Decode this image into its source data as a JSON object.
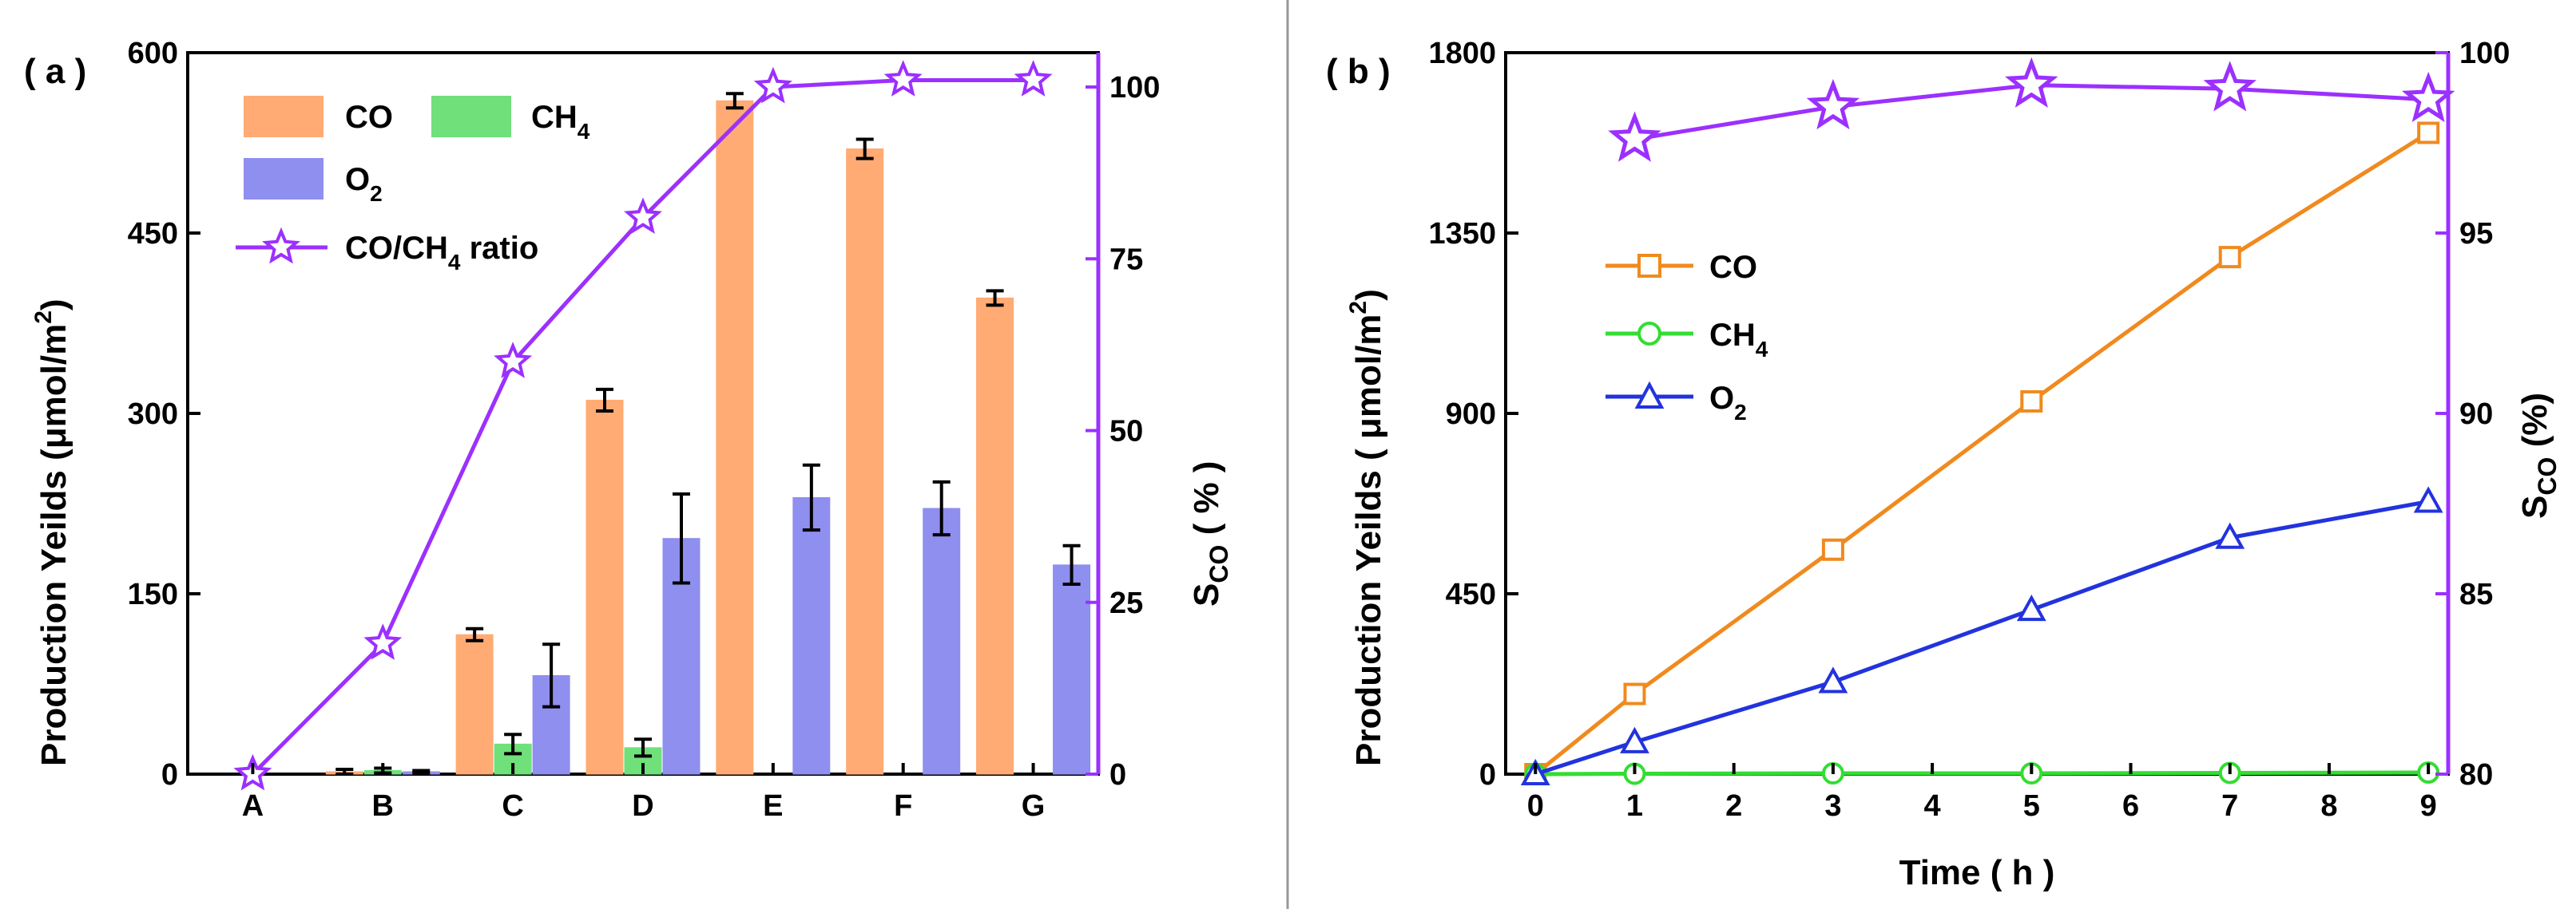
{
  "colors": {
    "co_bar": "#ffab73",
    "ch4_bar": "#6fe07a",
    "o2_bar": "#8f8ff0",
    "ratio": "#9b30ff",
    "co_line": "#f08a1e",
    "ch4_line": "#33dd33",
    "o2_line": "#2233dd",
    "axis": "#000000",
    "divider": "#999999"
  },
  "chart_data": [
    {
      "panel": "( a )",
      "type": "bar",
      "categories": [
        "A",
        "B",
        "C",
        "D",
        "E",
        "F",
        "G"
      ],
      "ylabel": "Production Yeilds (μmol/m",
      "ylabel_sup": "2",
      "ylabel_close": ")",
      "ylim": [
        0,
        600
      ],
      "yticks": [
        0,
        150,
        300,
        450,
        600
      ],
      "y2label_main": "S",
      "y2label_sub": "CO",
      "y2label_rest": "  ( % )",
      "y2lim": [
        0,
        105
      ],
      "y2ticks": [
        0,
        25,
        50,
        75,
        100
      ],
      "series": [
        {
          "name": "CO",
          "name_sub": "",
          "values": [
            0,
            2,
            116,
            311,
            560,
            520,
            396
          ],
          "errors": [
            0,
            2,
            5,
            9,
            6,
            8,
            6
          ]
        },
        {
          "name": "CH",
          "name_sub": "4",
          "values": [
            0,
            3,
            25,
            22,
            0,
            0,
            0
          ],
          "errors": [
            0,
            2,
            8,
            7,
            0,
            0,
            0
          ]
        },
        {
          "name": "O",
          "name_sub": "2",
          "values": [
            0,
            2,
            82,
            196,
            230,
            221,
            174
          ],
          "errors": [
            0,
            1,
            26,
            37,
            27,
            22,
            16
          ]
        }
      ],
      "line": {
        "name": "CO/CH",
        "name_sub": "4",
        "name_rest": " ratio",
        "values": [
          0,
          19,
          60,
          81,
          100,
          101,
          101
        ]
      }
    },
    {
      "panel": "( b )",
      "type": "line",
      "x": [
        0,
        1,
        3,
        5,
        7,
        9
      ],
      "xlabel": "Time ( h )",
      "xlim": [
        -0.3,
        9.2
      ],
      "xticks": [
        0,
        1,
        2,
        3,
        4,
        5,
        6,
        7,
        8,
        9
      ],
      "ylabel": "Production Yeilds ( μmol/m",
      "ylabel_sup": "2",
      "ylabel_close": ")",
      "ylim": [
        0,
        1800
      ],
      "yticks": [
        0,
        450,
        900,
        1350,
        1800
      ],
      "y2label_main": "S",
      "y2label_sub": "CO",
      "y2label_rest": " (%)",
      "y2lim": [
        80,
        100
      ],
      "y2ticks": [
        80,
        85,
        90,
        95,
        100
      ],
      "series": [
        {
          "name": "CO",
          "name_sub": "",
          "values": [
            0,
            200,
            560,
            930,
            1290,
            1600
          ]
        },
        {
          "name": "CH",
          "name_sub": "4",
          "values": [
            0,
            1,
            2,
            2,
            3,
            4
          ]
        },
        {
          "name": "O",
          "name_sub": "2",
          "values": [
            0,
            80,
            230,
            410,
            590,
            680
          ]
        }
      ],
      "selectivity": {
        "x": [
          1,
          3,
          5,
          7,
          9
        ],
        "values": [
          97.6,
          98.5,
          99.1,
          99.0,
          98.7
        ]
      }
    }
  ]
}
